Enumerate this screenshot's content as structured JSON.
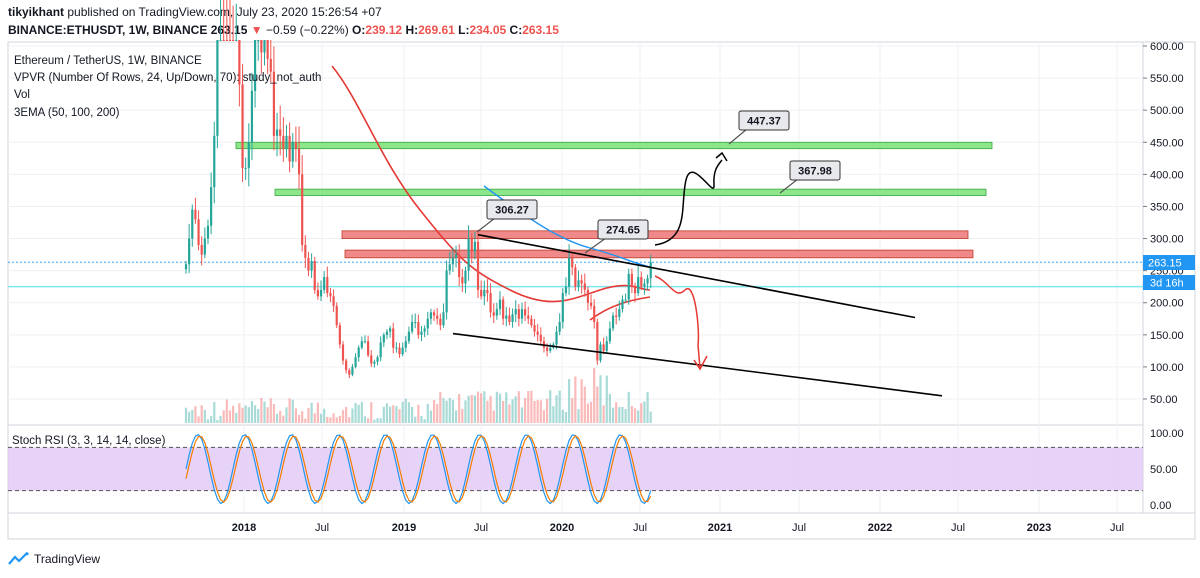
{
  "header": {
    "user": "tikyikhant",
    "published": "published on TradingView.com, July 23, 2020 15:26:54 +07",
    "symbol": "BINANCE:ETHUSDT, 1W, BINANCE",
    "last": "263.15",
    "change": "−0.59 (−0.22%)",
    "o_label": "O:",
    "o": "239.12",
    "h_label": "H:",
    "h": "269.61",
    "l_label": "L:",
    "l": "234.05",
    "c_label": "C:",
    "c": "263.15"
  },
  "legend": {
    "title": "Ethereum / TetherUS, 1W, BINANCE",
    "vpvr": "VPVR (Number Of Rows, 24, Up/Down, 70): study_not_auth",
    "vol": "Vol",
    "ema": "3EMA (50, 100, 200)",
    "rsi": "Stoch RSI (3, 3, 14, 14, close)"
  },
  "price_badge": "263.15",
  "countdown_badge": "3d 16h",
  "footer": {
    "brand": "TradingView"
  },
  "colors": {
    "up": "#26a69a",
    "down": "#ef5350",
    "zone_green": "#8ee68b",
    "zone_red": "#f08a8a",
    "ema": "#e53935",
    "ema_blue": "#2196f3",
    "cyan": "#7ee8f0",
    "rsi_fill": "#e1c8f5",
    "k_line": "#2196f3",
    "d_line": "#f57c00"
  },
  "chart_data": [
    {
      "type": "candlestick",
      "x_ticks": [
        "2018",
        "Jul",
        "2019",
        "Jul",
        "2020",
        "Jul",
        "2021",
        "Jul",
        "2022",
        "Jul",
        "2023",
        "Jul"
      ],
      "y_ticks": [
        "600.00",
        "550.00",
        "500.00",
        "450.00",
        "400.00",
        "350.00",
        "300.00",
        "250.00",
        "200.00",
        "150.00",
        "100.00",
        "50.00"
      ],
      "ylim": [
        30,
        605
      ],
      "annotations": [
        "447.37",
        "367.98",
        "306.27",
        "274.65"
      ],
      "resistance_zones": [
        {
          "color": "green",
          "low": 440,
          "high": 450
        },
        {
          "color": "green",
          "low": 367,
          "high": 377
        },
        {
          "color": "red",
          "low": 300,
          "high": 312
        },
        {
          "color": "red",
          "low": 270,
          "high": 282
        }
      ],
      "horizontal_line": 225,
      "last_price": 263.15,
      "closes": [
        260,
        300,
        345,
        330,
        290,
        275,
        300,
        320,
        380,
        460,
        760,
        1100,
        1000,
        870,
        820,
        700,
        750,
        540,
        410,
        410,
        450,
        530,
        620,
        650,
        590,
        650,
        580,
        560,
        460,
        470,
        460,
        440,
        460,
        420,
        450,
        440,
        400,
        290,
        270,
        250,
        265,
        220,
        210,
        220,
        240,
        215,
        210,
        195,
        165,
        135,
        110,
        95,
        88,
        100,
        115,
        130,
        140,
        140,
        118,
        105,
        108,
        115,
        138,
        150,
        155,
        160,
        130,
        130,
        120,
        130,
        140,
        155,
        170,
        170,
        150,
        155,
        160,
        175,
        185,
        180,
        175,
        165,
        185,
        250,
        260,
        270,
        275,
        240,
        230,
        250,
        300,
        280,
        295,
        220,
        210,
        220,
        215,
        185,
        180,
        190,
        205,
        175,
        180,
        170,
        182,
        190,
        175,
        190,
        180,
        175,
        165,
        155,
        150,
        140,
        130,
        125,
        130,
        135,
        155,
        170,
        215,
        225,
        270,
        255,
        225,
        235,
        230,
        220,
        200,
        195,
        170,
        110,
        135,
        125,
        140,
        160,
        180,
        178,
        190,
        205,
        205,
        245,
        225,
        215,
        240,
        225,
        230,
        238,
        263
      ]
    },
    {
      "type": "line",
      "title": "Stoch RSI (3, 3, 14, 14, close)",
      "y_ticks": [
        "100.00",
        "50.00",
        "0.00"
      ],
      "ylim": [
        -5,
        105
      ],
      "bands": [
        20,
        80
      ]
    }
  ]
}
